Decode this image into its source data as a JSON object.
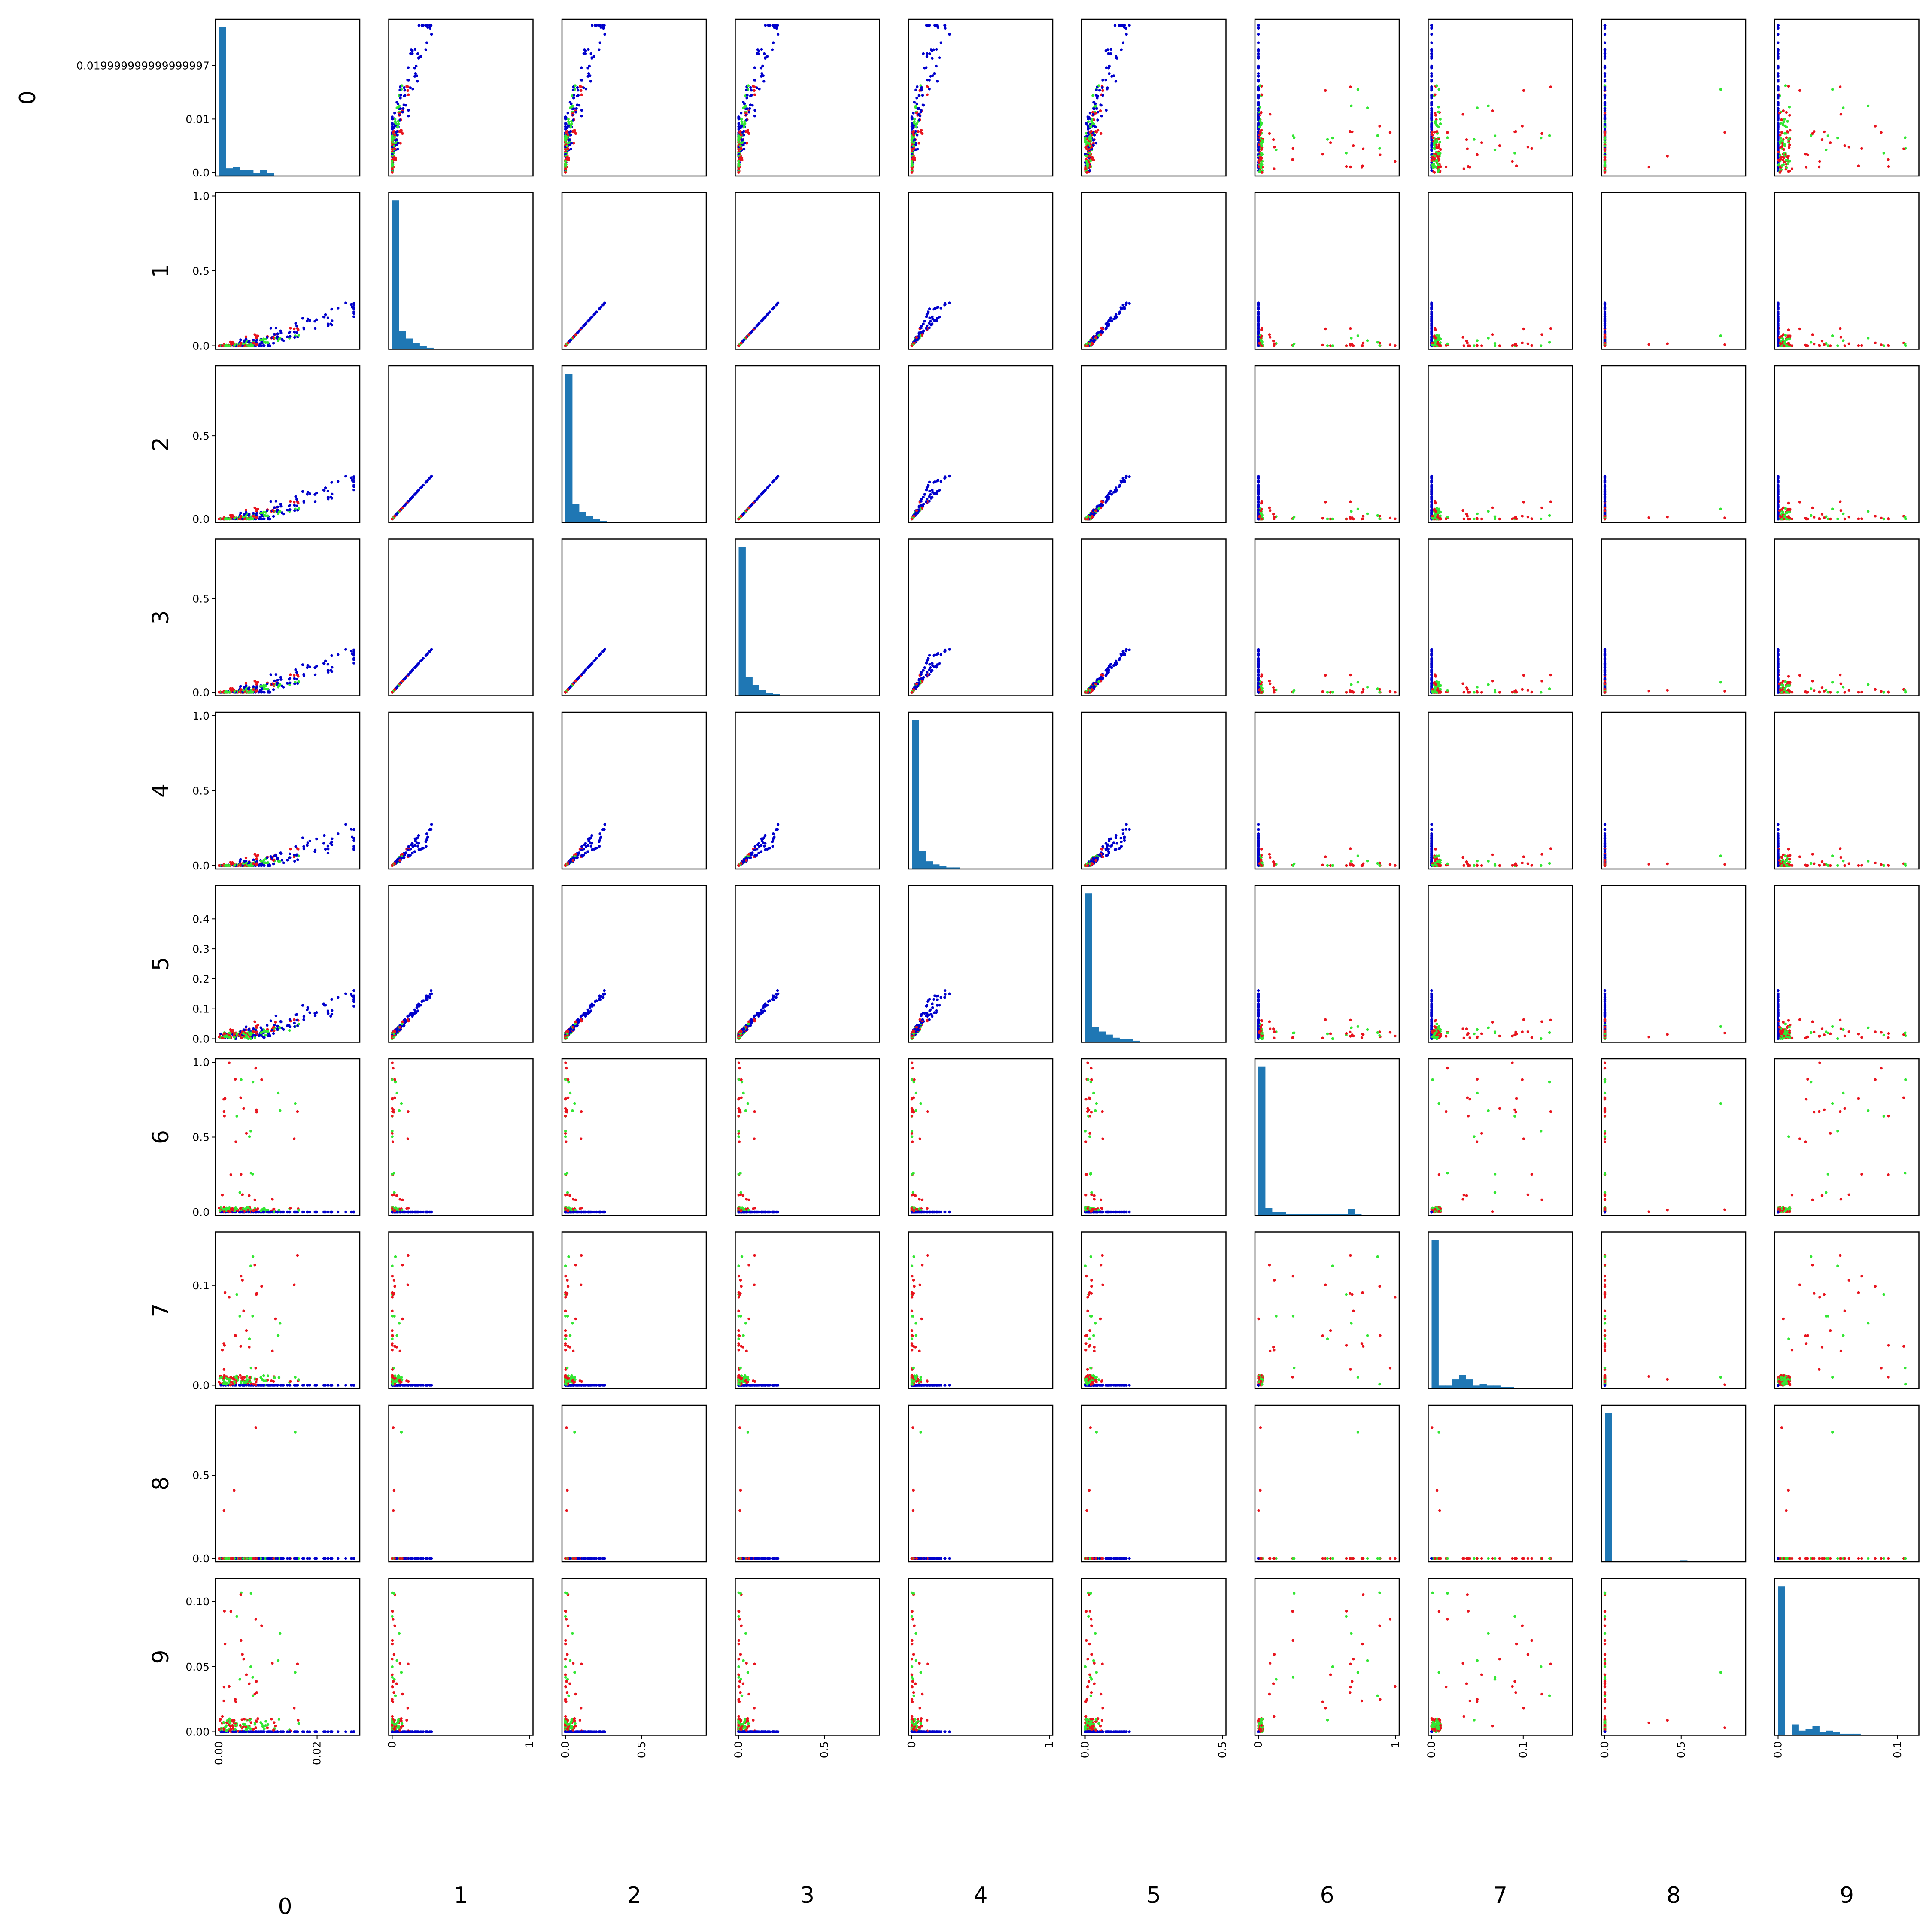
{
  "chart_data": {
    "type": "scatter",
    "title": "",
    "variables": [
      "0",
      "1",
      "2",
      "3",
      "4",
      "5",
      "6",
      "7",
      "8",
      "9"
    ],
    "diagonal": "histogram",
    "grid": false,
    "legend": "none",
    "colors": {
      "histogram": "#1f77b4",
      "series_blue": "#0000cc",
      "series_red": "#e8141e",
      "series_green": "#33e633",
      "axes": "#000000",
      "background": "#ffffff"
    },
    "ranges": [
      [
        0,
        0.028
      ],
      [
        0,
        1.0
      ],
      [
        0,
        0.9
      ],
      [
        0,
        0.8
      ],
      [
        0,
        1.0
      ],
      [
        0,
        0.5
      ],
      [
        0,
        1.0
      ],
      [
        0,
        0.15
      ],
      [
        0,
        0.9
      ],
      [
        0,
        0.115
      ]
    ],
    "y_ticks": [
      {
        "values": [
          0.0,
          0.01,
          0.019999999999999997
        ],
        "labels": [
          "0.0",
          "0.01",
          "0.019999999999999997"
        ]
      },
      {
        "values": [
          0.0,
          0.5,
          1.0
        ],
        "labels": [
          "0.0",
          "0.5",
          "1.0"
        ]
      },
      {
        "values": [
          0.0,
          0.5
        ],
        "labels": [
          "0.0",
          "0.5"
        ]
      },
      {
        "values": [
          0.0,
          0.5
        ],
        "labels": [
          "0.0",
          "0.5"
        ]
      },
      {
        "values": [
          0.0,
          0.5,
          1.0
        ],
        "labels": [
          "0.0",
          "0.5",
          "1.0"
        ]
      },
      {
        "values": [
          0.0,
          0.1,
          0.2,
          0.3,
          0.4
        ],
        "labels": [
          "0.0",
          "0.1",
          "0.2",
          "0.3",
          "0.4"
        ]
      },
      {
        "values": [
          0.0,
          0.5,
          1.0
        ],
        "labels": [
          "0.0",
          "0.5",
          "1.0"
        ]
      },
      {
        "values": [
          0.0,
          0.1
        ],
        "labels": [
          "0.0",
          "0.1"
        ]
      },
      {
        "values": [
          0.0,
          0.5
        ],
        "labels": [
          "0.0",
          "0.5"
        ]
      },
      {
        "values": [
          0.0,
          0.05,
          0.1
        ],
        "labels": [
          "0.00",
          "0.05",
          "0.10"
        ]
      }
    ],
    "x_ticks": [
      {
        "values": [
          0.0,
          0.02
        ],
        "labels": [
          "0.00",
          "0.02"
        ]
      },
      {
        "values": [
          0,
          1
        ],
        "labels": [
          "0",
          "1"
        ]
      },
      {
        "values": [
          0.0,
          0.5
        ],
        "labels": [
          "0.0",
          "0.5"
        ]
      },
      {
        "values": [
          0.0,
          0.5
        ],
        "labels": [
          "0.0",
          "0.5"
        ]
      },
      {
        "values": [
          0,
          1
        ],
        "labels": [
          "0",
          "1"
        ]
      },
      {
        "values": [
          0.0,
          0.5
        ],
        "labels": [
          "0.0",
          "0.5"
        ]
      },
      {
        "values": [
          0,
          1
        ],
        "labels": [
          "0",
          "1"
        ]
      },
      {
        "values": [
          0.0,
          0.1
        ],
        "labels": [
          "0.0",
          "0.1"
        ]
      },
      {
        "values": [
          0.0,
          0.5
        ],
        "labels": [
          "0.0",
          "0.5"
        ]
      },
      {
        "values": [
          0.0,
          0.1
        ],
        "labels": [
          "0.0",
          "0.1"
        ]
      }
    ],
    "histograms": [
      [
        0.97,
        0.05,
        0.06,
        0.04,
        0.04,
        0.02,
        0.04,
        0.02,
        0.0,
        0.0,
        0.0,
        0.0,
        0.0,
        0.0,
        0.0,
        0.0,
        0.0,
        0.0,
        0.0,
        0.0
      ],
      [
        0.97,
        0.12,
        0.07,
        0.04,
        0.02,
        0.01,
        0.0,
        0.0,
        0.0,
        0.0,
        0.0,
        0.0,
        0.0,
        0.0,
        0.0,
        0.0,
        0.0,
        0.0,
        0.0,
        0.0
      ],
      [
        0.97,
        0.12,
        0.07,
        0.04,
        0.02,
        0.01,
        0.0,
        0.0,
        0.0,
        0.0,
        0.0,
        0.0,
        0.0,
        0.0,
        0.0,
        0.0,
        0.0,
        0.0,
        0.0,
        0.0
      ],
      [
        0.97,
        0.12,
        0.07,
        0.04,
        0.02,
        0.01,
        0.0,
        0.0,
        0.0,
        0.0,
        0.0,
        0.0,
        0.0,
        0.0,
        0.0,
        0.0,
        0.0,
        0.0,
        0.0,
        0.0
      ],
      [
        0.97,
        0.12,
        0.05,
        0.03,
        0.02,
        0.01,
        0.01,
        0.0,
        0.0,
        0.0,
        0.0,
        0.0,
        0.0,
        0.0,
        0.0,
        0.0,
        0.0,
        0.0,
        0.0,
        0.0
      ],
      [
        0.97,
        0.1,
        0.07,
        0.05,
        0.03,
        0.02,
        0.02,
        0.01,
        0.0,
        0.0,
        0.0,
        0.0,
        0.0,
        0.0,
        0.0,
        0.0,
        0.0,
        0.0,
        0.0,
        0.0
      ],
      [
        0.97,
        0.05,
        0.02,
        0.02,
        0.01,
        0.01,
        0.01,
        0.01,
        0.01,
        0.01,
        0.01,
        0.01,
        0.01,
        0.04,
        0.01,
        0.0,
        0.0,
        0.0,
        0.0,
        0.0
      ],
      [
        0.97,
        0.02,
        0.02,
        0.06,
        0.09,
        0.06,
        0.02,
        0.03,
        0.02,
        0.02,
        0.01,
        0.01,
        0.0,
        0.0,
        0.0,
        0.0,
        0.0,
        0.0,
        0.0,
        0.0
      ],
      [
        0.97,
        0.0,
        0.0,
        0.0,
        0.0,
        0.0,
        0.0,
        0.0,
        0.0,
        0.0,
        0.0,
        0.01,
        0.0,
        0.0,
        0.0,
        0.0,
        0.0,
        0.0,
        0.0,
        0.0
      ],
      [
        0.97,
        0.0,
        0.07,
        0.03,
        0.04,
        0.06,
        0.02,
        0.03,
        0.02,
        0.01,
        0.01,
        0.01,
        0.0,
        0.0,
        0.0,
        0.0,
        0.0,
        0.0,
        0.0,
        0.0
      ]
    ]
  }
}
